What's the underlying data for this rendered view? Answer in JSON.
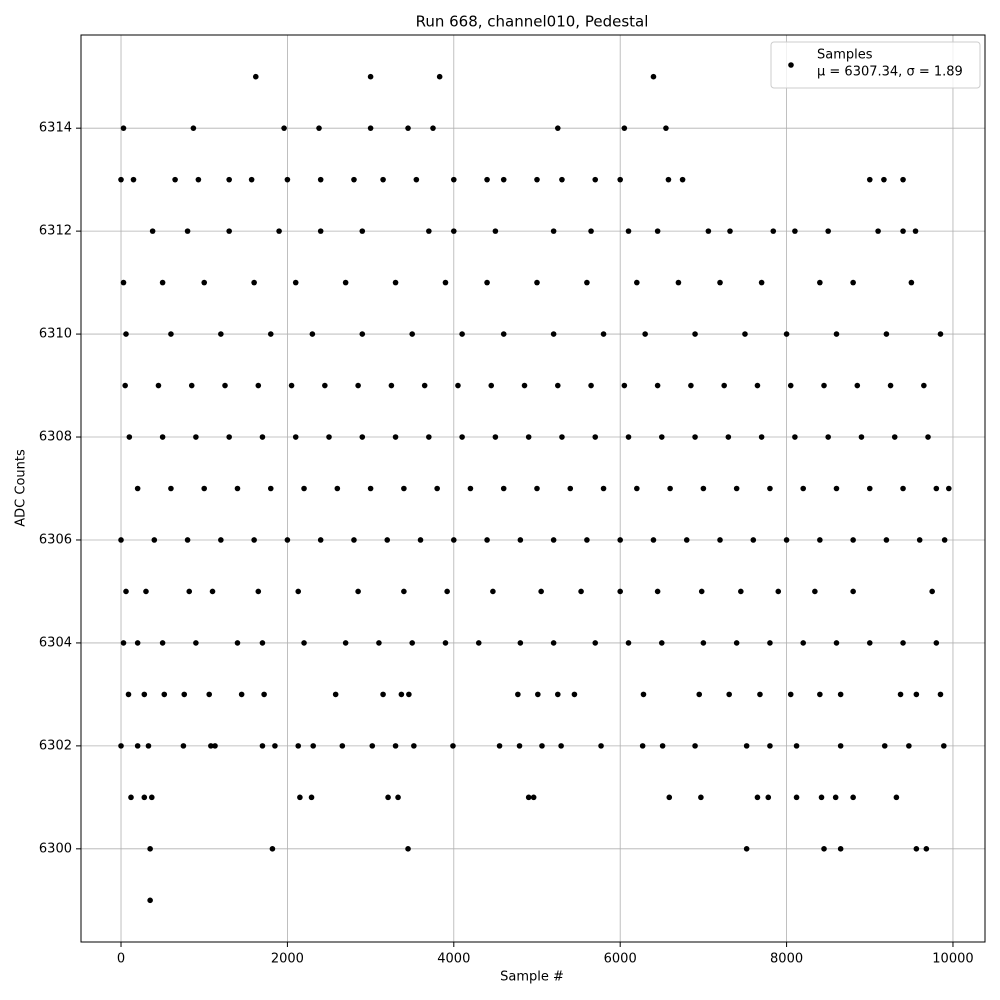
{
  "chart_data": {
    "type": "scatter",
    "title": "Run 668, channel010, Pedestal",
    "xlabel": "Sample #",
    "ylabel": "ADC Counts",
    "legend_note": "μ = 6307.34, σ = 1.89",
    "legend": "upper right",
    "grid": true,
    "xlim": [
      -481,
      10385
    ],
    "ylim": [
      6298.19,
      6315.81
    ],
    "xticks": [
      0,
      2000,
      4000,
      6000,
      8000,
      10000
    ],
    "yticks": [
      6300,
      6302,
      6304,
      6306,
      6308,
      6310,
      6312,
      6314
    ],
    "series": [
      {
        "name": "Samples",
        "color": "#000000",
        "x": [
          350,
          350,
          1820,
          3450,
          7520,
          8450,
          8650,
          9560,
          9680,
          120,
          280,
          370,
          2150,
          2290,
          3210,
          3330,
          4900,
          4960,
          6590,
          6970,
          7650,
          7780,
          8120,
          8420,
          8590,
          8800,
          9320,
          0,
          200,
          330,
          750,
          1080,
          1130,
          1700,
          1850,
          2130,
          2310,
          2660,
          3020,
          3300,
          3520,
          3990,
          4550,
          4790,
          5060,
          5290,
          5770,
          6270,
          6510,
          6900,
          7520,
          7800,
          8120,
          8650,
          9180,
          9470,
          9890,
          90,
          280,
          520,
          760,
          1060,
          1450,
          1720,
          2580,
          3150,
          3370,
          3460,
          4770,
          5010,
          5250,
          5450,
          6280,
          6950,
          7310,
          7680,
          8050,
          8400,
          8650,
          9370,
          9560,
          9850,
          30,
          200,
          500,
          900,
          1400,
          1700,
          2200,
          2700,
          3100,
          3500,
          3900,
          4300,
          4800,
          5200,
          5700,
          6100,
          6500,
          7000,
          7400,
          7800,
          8200,
          8600,
          9000,
          9400,
          9800,
          60,
          300,
          820,
          1100,
          1650,
          2130,
          2850,
          3400,
          3920,
          4470,
          5050,
          5530,
          6000,
          6450,
          6980,
          7450,
          7900,
          8340,
          8800,
          9750,
          0,
          400,
          800,
          1200,
          1600,
          2000,
          2400,
          2800,
          3200,
          3600,
          4000,
          4400,
          4800,
          5200,
          5600,
          6000,
          6400,
          6800,
          7200,
          7600,
          8000,
          8400,
          8800,
          9200,
          9600,
          9900,
          200,
          600,
          1000,
          1400,
          1800,
          2200,
          2600,
          3000,
          3400,
          3800,
          4200,
          4600,
          5000,
          5400,
          5800,
          6200,
          6600,
          7000,
          7400,
          7800,
          8200,
          8600,
          9000,
          9400,
          9800,
          9950,
          100,
          500,
          900,
          1300,
          1700,
          2100,
          2500,
          2900,
          3300,
          3700,
          4100,
          4500,
          4900,
          5300,
          5700,
          6100,
          6500,
          6900,
          7300,
          7700,
          8100,
          8500,
          8900,
          9300,
          9700,
          50,
          450,
          850,
          1250,
          1650,
          2050,
          2450,
          2850,
          3250,
          3650,
          4050,
          4450,
          4850,
          5250,
          5650,
          6050,
          6450,
          6850,
          7250,
          7650,
          8050,
          8450,
          8850,
          9250,
          9650,
          60,
          600,
          1200,
          1800,
          2300,
          2900,
          3500,
          4100,
          4600,
          5200,
          5800,
          6300,
          6900,
          7500,
          8000,
          8600,
          9200,
          9850,
          30,
          500,
          1000,
          1600,
          2100,
          2700,
          3300,
          3900,
          4400,
          5000,
          5600,
          6200,
          6700,
          7200,
          7700,
          8400,
          8800,
          9500,
          380,
          800,
          1300,
          1900,
          2400,
          2900,
          3700,
          4000,
          4500,
          5200,
          5650,
          6100,
          6450,
          7060,
          7320,
          7840,
          8100,
          8500,
          9100,
          9400,
          9550,
          0,
          150,
          650,
          930,
          1300,
          1570,
          2000,
          2400,
          2800,
          3150,
          3550,
          4000,
          4400,
          4600,
          5000,
          5300,
          5700,
          6000,
          6580,
          6750,
          9000,
          9170,
          9400,
          30,
          870,
          1960,
          2380,
          3000,
          3450,
          3750,
          5250,
          6050,
          6550,
          1620,
          3000,
          3830,
          6400
        ],
        "y": [
          6299,
          6300,
          6300,
          6300,
          6300,
          6300,
          6300,
          6300,
          6300,
          6301,
          6301,
          6301,
          6301,
          6301,
          6301,
          6301,
          6301,
          6301,
          6301,
          6301,
          6301,
          6301,
          6301,
          6301,
          6301,
          6301,
          6301,
          6302,
          6302,
          6302,
          6302,
          6302,
          6302,
          6302,
          6302,
          6302,
          6302,
          6302,
          6302,
          6302,
          6302,
          6302,
          6302,
          6302,
          6302,
          6302,
          6302,
          6302,
          6302,
          6302,
          6302,
          6302,
          6302,
          6302,
          6302,
          6302,
          6302,
          6303,
          6303,
          6303,
          6303,
          6303,
          6303,
          6303,
          6303,
          6303,
          6303,
          6303,
          6303,
          6303,
          6303,
          6303,
          6303,
          6303,
          6303,
          6303,
          6303,
          6303,
          6303,
          6303,
          6303,
          6303,
          6304,
          6304,
          6304,
          6304,
          6304,
          6304,
          6304,
          6304,
          6304,
          6304,
          6304,
          6304,
          6304,
          6304,
          6304,
          6304,
          6304,
          6304,
          6304,
          6304,
          6304,
          6304,
          6304,
          6304,
          6304,
          6305,
          6305,
          6305,
          6305,
          6305,
          6305,
          6305,
          6305,
          6305,
          6305,
          6305,
          6305,
          6305,
          6305,
          6305,
          6305,
          6305,
          6305,
          6305,
          6305,
          6306,
          6306,
          6306,
          6306,
          6306,
          6306,
          6306,
          6306,
          6306,
          6306,
          6306,
          6306,
          6306,
          6306,
          6306,
          6306,
          6306,
          6306,
          6306,
          6306,
          6306,
          6306,
          6306,
          6306,
          6306,
          6306,
          6307,
          6307,
          6307,
          6307,
          6307,
          6307,
          6307,
          6307,
          6307,
          6307,
          6307,
          6307,
          6307,
          6307,
          6307,
          6307,
          6307,
          6307,
          6307,
          6307,
          6307,
          6307,
          6307,
          6307,
          6307,
          6307,
          6308,
          6308,
          6308,
          6308,
          6308,
          6308,
          6308,
          6308,
          6308,
          6308,
          6308,
          6308,
          6308,
          6308,
          6308,
          6308,
          6308,
          6308,
          6308,
          6308,
          6308,
          6308,
          6308,
          6308,
          6308,
          6309,
          6309,
          6309,
          6309,
          6309,
          6309,
          6309,
          6309,
          6309,
          6309,
          6309,
          6309,
          6309,
          6309,
          6309,
          6309,
          6309,
          6309,
          6309,
          6309,
          6309,
          6309,
          6309,
          6309,
          6309,
          6310,
          6310,
          6310,
          6310,
          6310,
          6310,
          6310,
          6310,
          6310,
          6310,
          6310,
          6310,
          6310,
          6310,
          6310,
          6310,
          6310,
          6310,
          6311,
          6311,
          6311,
          6311,
          6311,
          6311,
          6311,
          6311,
          6311,
          6311,
          6311,
          6311,
          6311,
          6311,
          6311,
          6311,
          6311,
          6311,
          6312,
          6312,
          6312,
          6312,
          6312,
          6312,
          6312,
          6312,
          6312,
          6312,
          6312,
          6312,
          6312,
          6312,
          6312,
          6312,
          6312,
          6312,
          6312,
          6312,
          6312,
          6313,
          6313,
          6313,
          6313,
          6313,
          6313,
          6313,
          6313,
          6313,
          6313,
          6313,
          6313,
          6313,
          6313,
          6313,
          6313,
          6313,
          6313,
          6313,
          6313,
          6313,
          6313,
          6313,
          6314,
          6314,
          6314,
          6314,
          6314,
          6314,
          6314,
          6314,
          6314,
          6314,
          6315,
          6315,
          6315,
          6315
        ]
      }
    ]
  }
}
